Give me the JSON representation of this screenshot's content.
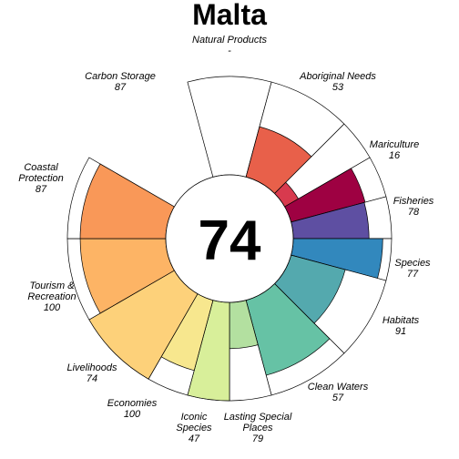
{
  "chart_data": {
    "type": "flower",
    "title": "Malta",
    "center_score": "74",
    "max_value": 100,
    "petals": [
      {
        "name": "Natural Products",
        "value": null,
        "value_label": "-",
        "color": "#ffffff"
      },
      {
        "name": "Aboriginal Needs",
        "value": 53,
        "value_label": "53",
        "color": "#e8604a"
      },
      {
        "name": "Mariculture",
        "value": 16,
        "value_label": "16",
        "color": "#d83a4e"
      },
      {
        "name": "Fisheries",
        "value": 78,
        "value_label": "78",
        "color": "#9e0142"
      },
      {
        "name": "Species",
        "value": 77,
        "value_label": "77",
        "color": "#5e4fa2"
      },
      {
        "name": "Habitats",
        "value": 91,
        "value_label": "91",
        "color": "#3288bd"
      },
      {
        "name": "Clean Waters",
        "value": 57,
        "value_label": "57",
        "color": "#54a9ae"
      },
      {
        "name": "Lasting Special Places",
        "value": 79,
        "value_label": "79",
        "color": "#66c2a5"
      },
      {
        "name": "Iconic Species",
        "value": 47,
        "value_label": "47",
        "color": "#b3e0a0"
      },
      {
        "name": "Economies",
        "value": 100,
        "value_label": "100",
        "color": "#d8ef9a"
      },
      {
        "name": "Livelihoods",
        "value": 74,
        "value_label": "74",
        "color": "#f7e78e"
      },
      {
        "name": "Tourism & Recreation",
        "value": 100,
        "value_label": "100",
        "color": "#fdd17a"
      },
      {
        "name": "Coastal Protection",
        "value": 87,
        "value_label": "87",
        "color": "#fdb465"
      },
      {
        "name": "Carbon Storage",
        "value": 87,
        "value_label": "87",
        "color": "#f99858"
      }
    ]
  }
}
